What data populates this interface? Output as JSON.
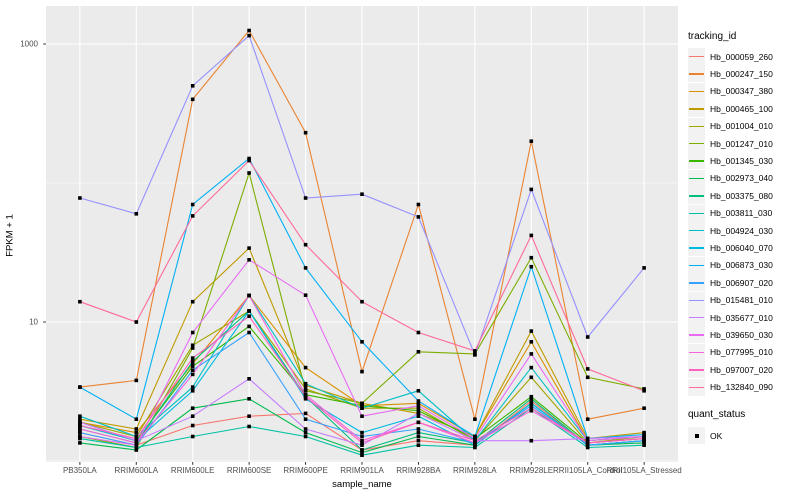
{
  "chart_data": {
    "type": "line",
    "title": "",
    "xlabel": "sample_name",
    "ylabel": "FPKM + 1",
    "y_scale": "log10",
    "y_ticks": [
      10,
      1000
    ],
    "ylim": [
      0.98,
      1875
    ],
    "grid": true,
    "legend_position": "right",
    "panel_bg": "#EBEBEB",
    "gridline_color": "#FFFFFF",
    "point_color": "#000000",
    "point_shape": "square",
    "categories": [
      "PB350LA",
      "RRIM600LA",
      "RRIM600LE",
      "RRIM600SE",
      "RRIM600PE",
      "RRIM901LA",
      "RRIM928BA",
      "RRIM928LA",
      "RRIM928LE",
      "RRII105LA_Control",
      "RRII105LA_Stressed"
    ],
    "series_legend_title": "tracking_id",
    "shape_legend_title": "quant_status",
    "shape_legend_label": "OK",
    "series": [
      {
        "name": "Hb_000059_260",
        "color": "#F8766D",
        "values": [
          1.6,
          1.3,
          1.8,
          2.1,
          2.2,
          1.2,
          1.4,
          1.3,
          2.7,
          1.3,
          1.4
        ]
      },
      {
        "name": "Hb_000247_150",
        "color": "#EA8331",
        "values": [
          3.4,
          3.8,
          400,
          1250,
          230,
          4.4,
          70,
          2.0,
          200,
          2.0,
          2.4
        ]
      },
      {
        "name": "Hb_000347_380",
        "color": "#D89000",
        "values": [
          1.9,
          1.6,
          5.0,
          15.5,
          4.7,
          2.5,
          2.6,
          1.5,
          7.2,
          1.4,
          1.5
        ]
      },
      {
        "name": "Hb_000465_100",
        "color": "#C09B00",
        "values": [
          2.0,
          1.7,
          14,
          34,
          3.5,
          2.6,
          2.2,
          1.5,
          8.6,
          1.45,
          1.6
        ]
      },
      {
        "name": "Hb_001004_010",
        "color": "#A3A500",
        "values": [
          1.9,
          1.5,
          6.8,
          12,
          3.3,
          2.4,
          2.4,
          1.4,
          4.0,
          1.35,
          1.5
        ]
      },
      {
        "name": "Hb_001247_010",
        "color": "#7CAE00",
        "values": [
          1.5,
          1.25,
          6.5,
          118,
          3.2,
          2.6,
          6.1,
          5.9,
          29,
          4.0,
          3.3
        ]
      },
      {
        "name": "Hb_001345_030",
        "color": "#39B600",
        "values": [
          1.8,
          1.4,
          4.8,
          9.3,
          3.0,
          2.5,
          2.3,
          1.45,
          2.9,
          1.35,
          1.45
        ]
      },
      {
        "name": "Hb_002973_040",
        "color": "#00BB4E",
        "values": [
          1.35,
          1.2,
          2.4,
          2.8,
          1.6,
          1.15,
          1.5,
          1.3,
          2.6,
          1.3,
          1.35
        ]
      },
      {
        "name": "Hb_003375_080",
        "color": "#00BF7D",
        "values": [
          1.7,
          1.35,
          5.2,
          12,
          2.9,
          1.2,
          1.6,
          1.35,
          2.8,
          1.3,
          1.4
        ]
      },
      {
        "name": "Hb_003811_030",
        "color": "#00C1A3",
        "values": [
          1.45,
          1.25,
          1.5,
          1.77,
          1.5,
          1.1,
          1.3,
          1.25,
          2.4,
          1.25,
          1.3
        ]
      },
      {
        "name": "Hb_004924_030",
        "color": "#00BFC4",
        "values": [
          2.1,
          1.5,
          3.4,
          15.5,
          3.6,
          2.4,
          3.2,
          1.4,
          4.7,
          1.4,
          1.5
        ]
      },
      {
        "name": "Hb_006040_070",
        "color": "#00BAE0",
        "values": [
          1.8,
          1.4,
          3.2,
          12,
          2.8,
          1.6,
          2.1,
          1.3,
          2.6,
          1.3,
          1.4
        ]
      },
      {
        "name": "Hb_006873_030",
        "color": "#00B0F6",
        "values": [
          3.4,
          2.0,
          70,
          150,
          24.5,
          7.2,
          2.7,
          1.5,
          25,
          1.45,
          1.55
        ]
      },
      {
        "name": "Hb_006907_020",
        "color": "#35A2FF",
        "values": [
          1.6,
          1.3,
          4.5,
          8.4,
          2.0,
          1.5,
          1.7,
          1.35,
          2.5,
          1.3,
          1.4
        ]
      },
      {
        "name": "Hb_015481_010",
        "color": "#9590FF",
        "values": [
          78,
          60,
          500,
          1150,
          78,
          83,
          57,
          5.8,
          90,
          7.8,
          24.5
        ]
      },
      {
        "name": "Hb_035677_010",
        "color": "#C77CFF",
        "values": [
          1.9,
          1.4,
          2.1,
          3.9,
          1.7,
          1.3,
          2.2,
          1.4,
          1.4,
          1.45,
          1.5
        ]
      },
      {
        "name": "Hb_039650_030",
        "color": "#E76BF3",
        "values": [
          1.5,
          1.3,
          8.4,
          28,
          15.6,
          2.1,
          2.5,
          1.45,
          5.9,
          1.4,
          1.5
        ]
      },
      {
        "name": "Hb_077995_010",
        "color": "#FA62DB",
        "values": [
          1.7,
          1.35,
          4.2,
          15.5,
          3.0,
          1.4,
          1.9,
          1.35,
          2.3,
          1.35,
          1.45
        ]
      },
      {
        "name": "Hb_097007_020",
        "color": "#FF62BC",
        "values": [
          1.8,
          1.45,
          5.5,
          11,
          2.9,
          1.35,
          1.9,
          1.4,
          2.4,
          1.35,
          1.45
        ]
      },
      {
        "name": "Hb_132840_090",
        "color": "#FF6A98",
        "values": [
          14,
          10,
          58,
          145,
          36,
          14,
          8.4,
          6.2,
          42,
          4.6,
          3.2
        ]
      }
    ]
  }
}
